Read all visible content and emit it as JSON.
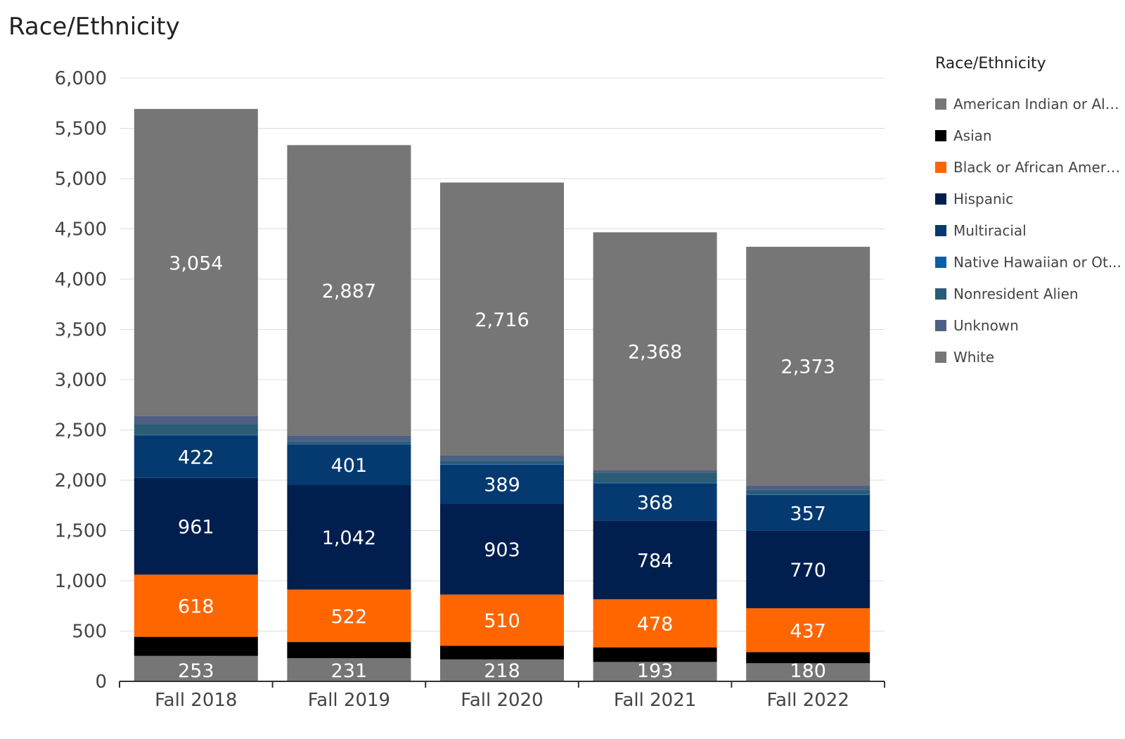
{
  "chart_data": {
    "type": "bar",
    "stacked": true,
    "title": "Race/Ethnicity",
    "legend_title": "Race/Ethnicity",
    "legend_position": "right",
    "grid": true,
    "ylim": [
      0,
      6000
    ],
    "yticks": [
      0,
      500,
      1000,
      1500,
      2000,
      2500,
      3000,
      3500,
      4000,
      4500,
      5000,
      5500,
      6000
    ],
    "ytick_labels": [
      "0",
      "500",
      "1,000",
      "1,500",
      "2,000",
      "2,500",
      "3,000",
      "3,500",
      "4,000",
      "4,500",
      "5,000",
      "5,500",
      "6,000"
    ],
    "categories": [
      "Fall 2018",
      "Fall 2019",
      "Fall 2020",
      "Fall 2021",
      "Fall 2022"
    ],
    "series": [
      {
        "name": "American Indian or Ala...",
        "color": "#767676",
        "values": [
          253,
          231,
          218,
          193,
          180
        ],
        "labels": [
          "253",
          "231",
          "218",
          "193",
          "180"
        ]
      },
      {
        "name": "Asian",
        "color": "#000000",
        "values": [
          190,
          160,
          135,
          145,
          110
        ],
        "labels": [
          "",
          "",
          "",
          "",
          ""
        ]
      },
      {
        "name": "Black or African Ameri...",
        "color": "#ff6600",
        "values": [
          618,
          522,
          510,
          478,
          437
        ],
        "labels": [
          "618",
          "522",
          "510",
          "478",
          "437"
        ]
      },
      {
        "name": "Hispanic",
        "color": "#001f4f",
        "values": [
          961,
          1042,
          903,
          784,
          770
        ],
        "labels": [
          "961",
          "1,042",
          "903",
          "784",
          "770"
        ]
      },
      {
        "name": "Multiracial",
        "color": "#053a70",
        "values": [
          422,
          401,
          389,
          368,
          357
        ],
        "labels": [
          "422",
          "401",
          "389",
          "368",
          "357"
        ]
      },
      {
        "name": "Native Hawaiian or Ot...",
        "color": "#0a5ea8",
        "values": [
          5,
          5,
          5,
          5,
          5
        ],
        "labels": [
          "",
          "",
          "",
          "",
          ""
        ]
      },
      {
        "name": "Nonresident Alien",
        "color": "#2b5c76",
        "values": [
          110,
          25,
          35,
          100,
          45
        ],
        "labels": [
          "",
          "",
          "",
          "",
          ""
        ]
      },
      {
        "name": "Unknown",
        "color": "#4d5f84",
        "values": [
          80,
          60,
          50,
          25,
          45
        ],
        "labels": [
          "",
          "",
          "",
          "",
          ""
        ]
      },
      {
        "name": "White",
        "color": "#767676",
        "values": [
          3054,
          2887,
          2716,
          2368,
          2373
        ],
        "labels": [
          "3,054",
          "2,887",
          "2,716",
          "2,368",
          "2,373"
        ]
      }
    ]
  }
}
